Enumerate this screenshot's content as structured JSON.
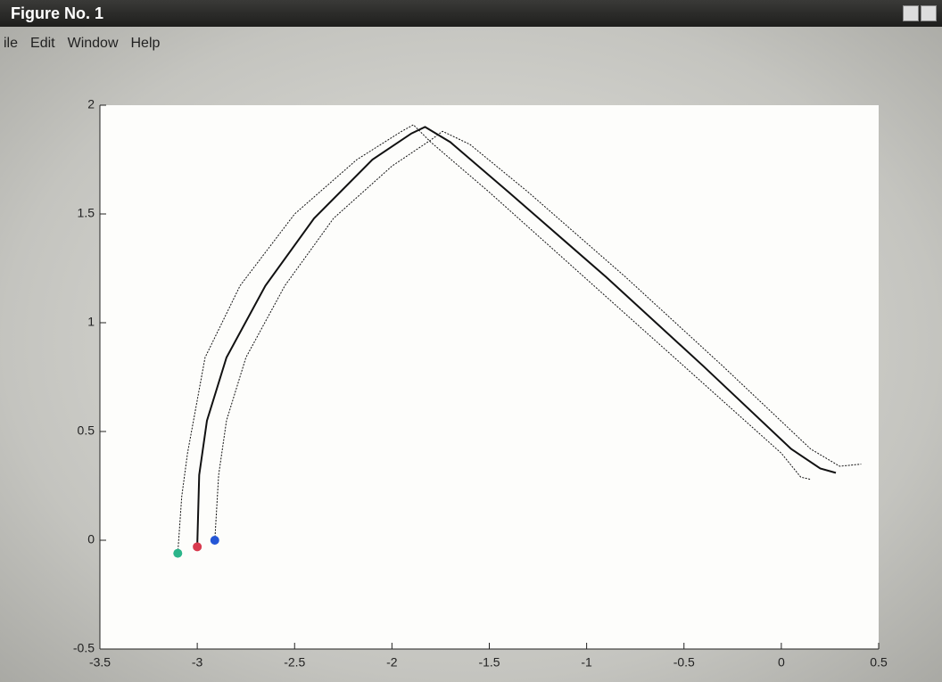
{
  "window": {
    "title": "Figure No. 1",
    "menu": [
      "ile",
      "Edit",
      "Window",
      "Help"
    ]
  },
  "chart_data": {
    "type": "line",
    "xlim": [
      -3.5,
      0.5
    ],
    "ylim": [
      -0.5,
      2
    ],
    "xticks": [
      -3.5,
      -3,
      -2.5,
      -2,
      -1.5,
      -1,
      -0.5,
      0,
      0.5
    ],
    "yticks": [
      -0.5,
      0,
      0.5,
      1,
      1.5,
      2
    ],
    "series": [
      {
        "color": "#111111",
        "marker_color": "#2bb58a",
        "width": 1,
        "x": [
          -3.1,
          -3.08,
          -3.05,
          -2.96,
          -2.78,
          -2.5,
          -2.18,
          -1.95,
          -1.89,
          -1.8,
          -1.5,
          -1.0,
          -0.5,
          0.0,
          0.1,
          0.15
        ],
        "values": [
          -0.06,
          0.2,
          0.4,
          0.84,
          1.17,
          1.5,
          1.75,
          1.88,
          1.91,
          1.83,
          1.6,
          1.2,
          0.8,
          0.4,
          0.29,
          0.28
        ]
      },
      {
        "color": "#111111",
        "marker_color": "#d83a4e",
        "width": 2,
        "x": [
          -3.0,
          -2.99,
          -2.95,
          -2.85,
          -2.65,
          -2.4,
          -2.1,
          -1.9,
          -1.83,
          -1.7,
          -1.4,
          -0.9,
          -0.4,
          0.05,
          0.2,
          0.28
        ],
        "values": [
          -0.03,
          0.3,
          0.55,
          0.84,
          1.17,
          1.48,
          1.75,
          1.87,
          1.9,
          1.83,
          1.6,
          1.21,
          0.8,
          0.42,
          0.33,
          0.31
        ]
      },
      {
        "color": "#111111",
        "marker_color": "#2456d6",
        "width": 1,
        "x": [
          -2.91,
          -2.89,
          -2.85,
          -2.75,
          -2.55,
          -2.3,
          -2.0,
          -1.8,
          -1.74,
          -1.6,
          -1.3,
          -0.8,
          -0.3,
          0.15,
          0.3,
          0.41
        ],
        "values": [
          0.0,
          0.3,
          0.55,
          0.84,
          1.17,
          1.48,
          1.72,
          1.84,
          1.88,
          1.82,
          1.6,
          1.21,
          0.8,
          0.42,
          0.34,
          0.35
        ]
      }
    ]
  }
}
